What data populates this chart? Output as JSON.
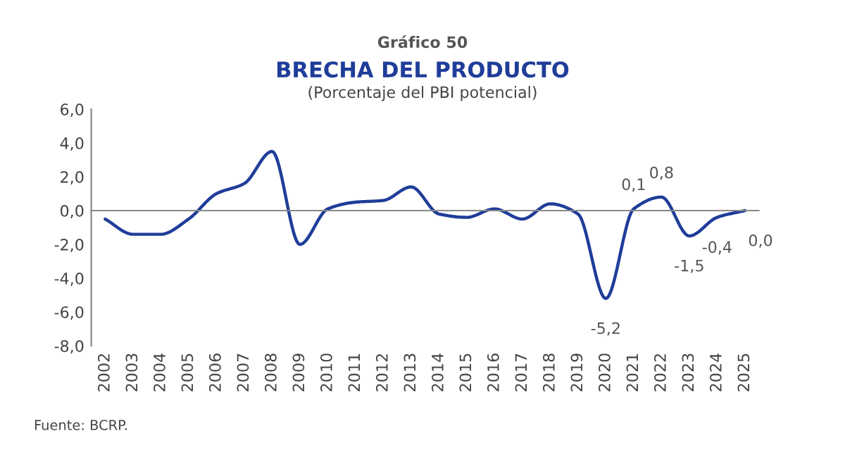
{
  "chart_data": {
    "type": "line",
    "title": "BRECHA DEL PRODUCTO",
    "subtitle": "(Porcentaje del PBI potencial)",
    "annotations": [
      "Gráfico 50",
      "Fuente: BCRP."
    ],
    "categories": [
      "2002",
      "2003",
      "2004",
      "2005",
      "2006",
      "2007",
      "2008",
      "2009",
      "2010",
      "2011",
      "2012",
      "2013",
      "2014",
      "2015",
      "2016",
      "2017",
      "2018",
      "2019",
      "2020",
      "2021",
      "2022",
      "2023",
      "2024",
      "2025"
    ],
    "series": [
      {
        "color": "#1f3d99",
        "values": [
          -0.5,
          -1.4,
          -1.4,
          -0.5,
          1.0,
          1.6,
          3.5,
          -2.0,
          0.1,
          0.5,
          0.6,
          1.4,
          -0.2,
          -0.4,
          0.1,
          -0.5,
          0.4,
          -0.2,
          -5.2,
          0.1,
          0.8,
          -1.5,
          -0.4,
          0.0
        ],
        "value_labels": [
          null,
          null,
          null,
          null,
          null,
          null,
          null,
          null,
          null,
          null,
          null,
          null,
          null,
          null,
          null,
          null,
          null,
          null,
          "-5,2",
          "0,1",
          "0,8",
          "-1,5",
          "-0,4",
          "0,0"
        ]
      }
    ],
    "ylim": [
      -8,
      6
    ],
    "yticks": [
      {
        "value": -8,
        "label": "-8,0"
      },
      {
        "value": -6,
        "label": "-6,0"
      },
      {
        "value": -4,
        "label": "-4,0"
      },
      {
        "value": -2,
        "label": "-2,0"
      },
      {
        "value": 0,
        "label": "0,0"
      },
      {
        "value": 2,
        "label": "2,0"
      },
      {
        "value": 4,
        "label": "4,0"
      },
      {
        "value": 6,
        "label": "6,0"
      }
    ],
    "legend": false,
    "marker": "none",
    "line_style": "solid"
  }
}
